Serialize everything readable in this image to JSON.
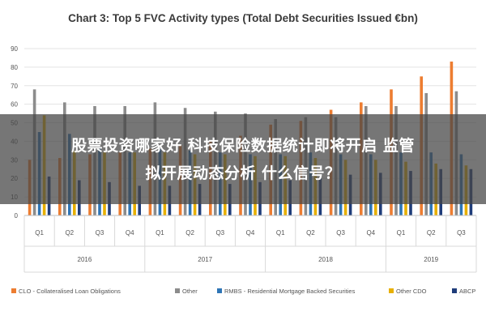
{
  "chart_data": {
    "type": "bar",
    "title": "Chart 3: Top 5 FVC Activity types (Total Debt Securities Issued €bn)",
    "xlabel": "",
    "ylabel": "",
    "ylim": [
      0,
      90
    ],
    "yticks": [
      "0",
      "10",
      "20",
      "30",
      "40",
      "50",
      "60",
      "70",
      "80",
      "90"
    ],
    "grid": true,
    "legend_position": "bottom",
    "quarters": [
      "Q1",
      "Q2",
      "Q3",
      "Q4",
      "Q1",
      "Q2",
      "Q3",
      "Q4",
      "Q1",
      "Q2",
      "Q3",
      "Q4",
      "Q1",
      "Q2",
      "Q3"
    ],
    "year_groups": [
      {
        "label": "2016",
        "quarters": 4
      },
      {
        "label": "2017",
        "quarters": 4
      },
      {
        "label": "2018",
        "quarters": 4
      },
      {
        "label": "2019",
        "quarters": 3
      }
    ],
    "series": [
      {
        "name": "CLO - Collateralised Loan Obligations",
        "color": "#ed7d31",
        "values": [
          30,
          31,
          33,
          34,
          36,
          38,
          40,
          43,
          49,
          51,
          57,
          61,
          68,
          75,
          83
        ]
      },
      {
        "name": "Other",
        "color": "#8c8c8c",
        "values": [
          68,
          61,
          59,
          59,
          61,
          58,
          56,
          55,
          52,
          53,
          53,
          59,
          59,
          66,
          67
        ]
      },
      {
        "name": "RMBS - Residential Mortgage Backed Securities",
        "color": "#2e75b6",
        "values": [
          45,
          44,
          36,
          34,
          36,
          35,
          34,
          33,
          33,
          34,
          33,
          33,
          34,
          34,
          33
        ]
      },
      {
        "name": "Other CDO",
        "color": "#e8b000",
        "values": [
          54,
          35,
          34,
          34,
          34,
          33,
          33,
          32,
          32,
          31,
          30,
          30,
          29,
          28,
          27
        ]
      },
      {
        "name": "ABCP",
        "color": "#1f3d7a",
        "values": [
          21,
          19,
          18,
          16,
          16,
          17,
          17,
          18,
          19,
          20,
          22,
          23,
          24,
          25,
          25
        ]
      }
    ]
  },
  "overlay": {
    "line1": "股票投资哪家好 科技保险数据统计即将开启 监管",
    "line2": "拟开展动态分析 什么信号？"
  }
}
